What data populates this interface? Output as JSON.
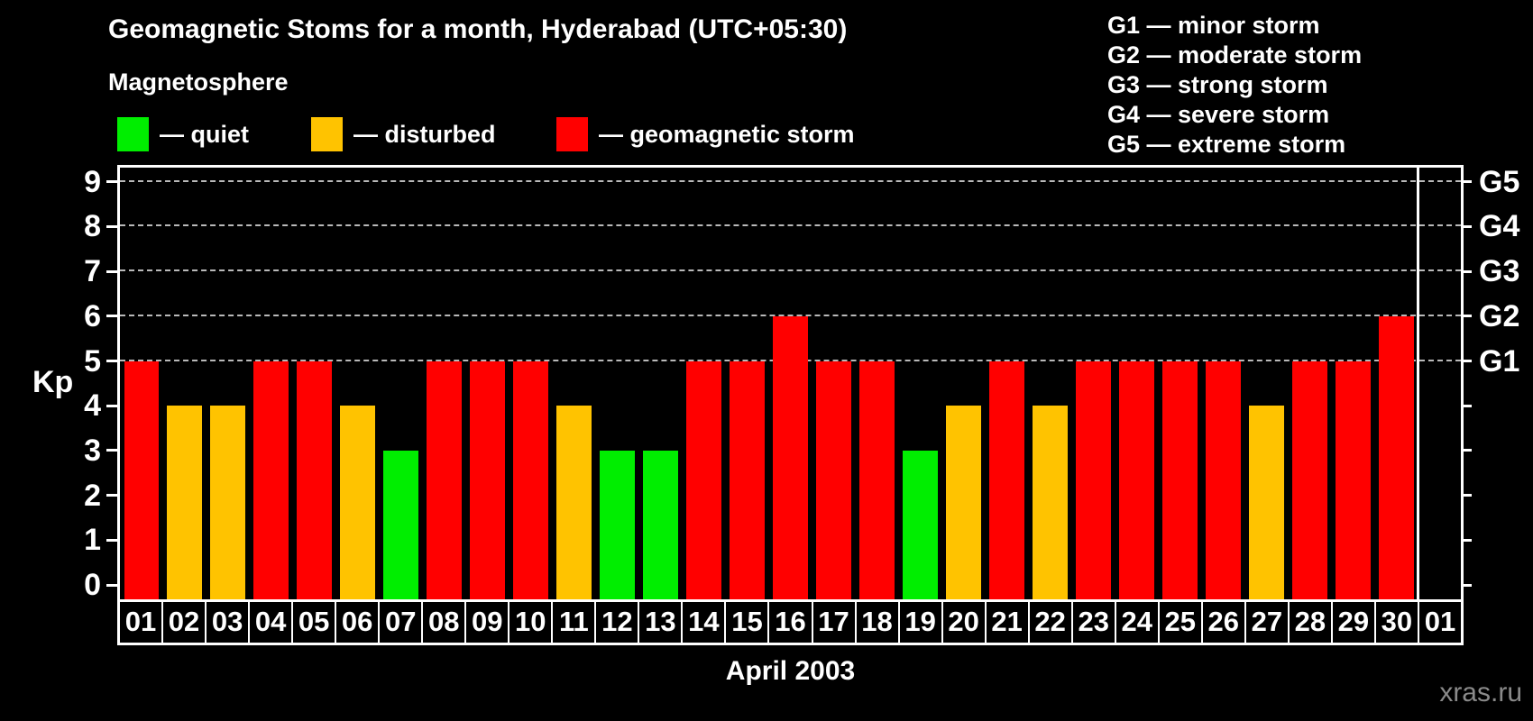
{
  "header": {
    "title": "Geomagnetic Stoms for a month, Hyderabad (UTC+05:30)",
    "subtitle": "Magnetosphere",
    "legend": [
      {
        "key": "quiet",
        "label": "— quiet",
        "color": "#00EE00"
      },
      {
        "key": "disturbed",
        "label": "— disturbed",
        "color": "#FFC300"
      },
      {
        "key": "storm",
        "label": "— geomagnetic storm",
        "color": "#FF0000"
      }
    ],
    "g_scale_legend": [
      "G1 — minor storm",
      "G2 — moderate storm",
      "G3 — strong storm",
      "G4 — severe storm",
      "G5 — extreme storm"
    ]
  },
  "chart_data": {
    "type": "bar",
    "title": "Geomagnetic Stoms for a month, Hyderabad (UTC+05:30)",
    "xlabel": "April 2003",
    "ylabel": "Kp",
    "ylim": [
      0,
      9
    ],
    "grid": "horizontal dashed lines at Kp 5,6,7,8,9",
    "legend_position": "top",
    "left_axis_ticks": [
      0,
      1,
      2,
      3,
      4,
      5,
      6,
      7,
      8,
      9
    ],
    "right_axis_labels": [
      {
        "kp": 5,
        "label": "G1"
      },
      {
        "kp": 6,
        "label": "G2"
      },
      {
        "kp": 7,
        "label": "G3"
      },
      {
        "kp": 8,
        "label": "G4"
      },
      {
        "kp": 9,
        "label": "G5"
      }
    ],
    "categories": [
      "01",
      "02",
      "03",
      "04",
      "05",
      "06",
      "07",
      "08",
      "09",
      "10",
      "11",
      "12",
      "13",
      "14",
      "15",
      "16",
      "17",
      "18",
      "19",
      "20",
      "21",
      "22",
      "23",
      "24",
      "25",
      "26",
      "27",
      "28",
      "29",
      "30",
      "01"
    ],
    "series": [
      {
        "name": "Kp index",
        "values": [
          5,
          4,
          4,
          5,
          5,
          4,
          3,
          5,
          5,
          5,
          4,
          3,
          3,
          5,
          5,
          6,
          5,
          5,
          3,
          4,
          5,
          4,
          5,
          5,
          5,
          5,
          4,
          5,
          5,
          6,
          null
        ]
      }
    ],
    "days": [
      {
        "day": "01",
        "kp": 5,
        "state": "storm"
      },
      {
        "day": "02",
        "kp": 4,
        "state": "disturbed"
      },
      {
        "day": "03",
        "kp": 4,
        "state": "disturbed"
      },
      {
        "day": "04",
        "kp": 5,
        "state": "storm"
      },
      {
        "day": "05",
        "kp": 5,
        "state": "storm"
      },
      {
        "day": "06",
        "kp": 4,
        "state": "disturbed"
      },
      {
        "day": "07",
        "kp": 3,
        "state": "quiet"
      },
      {
        "day": "08",
        "kp": 5,
        "state": "storm"
      },
      {
        "day": "09",
        "kp": 5,
        "state": "storm"
      },
      {
        "day": "10",
        "kp": 5,
        "state": "storm"
      },
      {
        "day": "11",
        "kp": 4,
        "state": "disturbed"
      },
      {
        "day": "12",
        "kp": 3,
        "state": "quiet"
      },
      {
        "day": "13",
        "kp": 3,
        "state": "quiet"
      },
      {
        "day": "14",
        "kp": 5,
        "state": "storm"
      },
      {
        "day": "15",
        "kp": 5,
        "state": "storm"
      },
      {
        "day": "16",
        "kp": 6,
        "state": "storm"
      },
      {
        "day": "17",
        "kp": 5,
        "state": "storm"
      },
      {
        "day": "18",
        "kp": 5,
        "state": "storm"
      },
      {
        "day": "19",
        "kp": 3,
        "state": "quiet"
      },
      {
        "day": "20",
        "kp": 4,
        "state": "disturbed"
      },
      {
        "day": "21",
        "kp": 5,
        "state": "storm"
      },
      {
        "day": "22",
        "kp": 4,
        "state": "disturbed"
      },
      {
        "day": "23",
        "kp": 5,
        "state": "storm"
      },
      {
        "day": "24",
        "kp": 5,
        "state": "storm"
      },
      {
        "day": "25",
        "kp": 5,
        "state": "storm"
      },
      {
        "day": "26",
        "kp": 5,
        "state": "storm"
      },
      {
        "day": "27",
        "kp": 4,
        "state": "disturbed"
      },
      {
        "day": "28",
        "kp": 5,
        "state": "storm"
      },
      {
        "day": "29",
        "kp": 5,
        "state": "storm"
      },
      {
        "day": "30",
        "kp": 6,
        "state": "storm"
      }
    ],
    "next_month_category": "01",
    "colors": {
      "quiet": "#00EE00",
      "disturbed": "#FFC300",
      "storm": "#FF0000"
    }
  },
  "footer": {
    "xlabel": "April 2003",
    "watermark": "xras.ru"
  }
}
